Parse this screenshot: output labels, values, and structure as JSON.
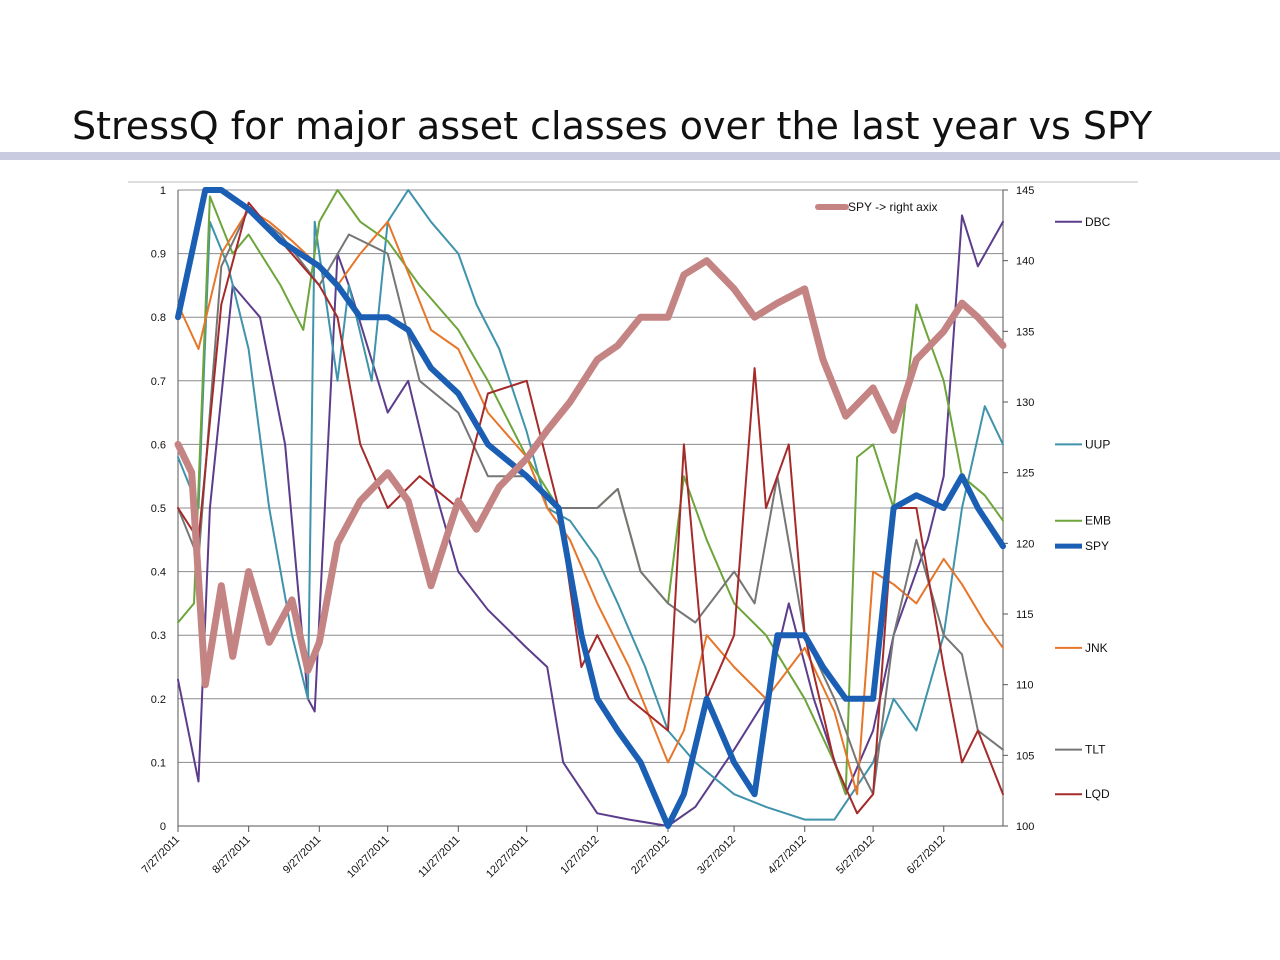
{
  "slide": {
    "title": "StressQ for major asset classes over the last year vs SPY"
  },
  "chart_data": {
    "type": "line",
    "dates": [
      "7/27/2011",
      "8/27/2011",
      "9/27/2011",
      "10/27/2011",
      "11/27/2011",
      "12/27/2011",
      "1/27/2012",
      "2/27/2012",
      "3/27/2012",
      "4/27/2012",
      "5/27/2012",
      "6/27/2012"
    ],
    "x_tick_labels": [
      "7/27/2011",
      "8/27/2011",
      "9/27/2011",
      "10/27/2011",
      "11/27/2011",
      "12/27/2011",
      "1/27/2012",
      "2/27/2012",
      "3/27/2012",
      "4/27/2012",
      "5/27/2012",
      "6/27/2012"
    ],
    "x_end": "7/23/2012",
    "ylim_left": [
      0,
      1
    ],
    "y_ticks_left": [
      "0",
      "0.1",
      "0.2",
      "0.3",
      "0.4",
      "0.5",
      "0.6",
      "0.7",
      "0.8",
      "0.9",
      "1"
    ],
    "ylim_right": [
      100,
      145
    ],
    "y_ticks_right": [
      "100",
      "105",
      "110",
      "115",
      "120",
      "125",
      "130",
      "135",
      "140",
      "145"
    ],
    "grid": "horizontal",
    "legend": "right",
    "inline_legend": {
      "label": "SPY  -> right axix",
      "color": "#c58484"
    },
    "series": [
      {
        "name": "DBC",
        "axis": "left",
        "color": "#5c3d8c",
        "width": 2,
        "x": [
          "7/27/2011",
          "8/5/2011",
          "8/10/2011",
          "8/20/2011",
          "9/1/2011",
          "9/12/2011",
          "9/22/2011",
          "9/25/2011",
          "10/5/2011",
          "10/10/2011",
          "10/27/2011",
          "11/5/2011",
          "11/15/2011",
          "11/27/2011",
          "12/10/2011",
          "12/27/2011",
          "1/5/2012",
          "1/12/2012",
          "1/27/2012",
          "2/10/2012",
          "2/27/2012",
          "3/10/2012",
          "3/27/2012",
          "4/10/2012",
          "4/20/2012",
          "5/1/2012",
          "5/15/2012",
          "5/27/2012",
          "6/5/2012",
          "6/20/2012",
          "6/27/2012",
          "7/5/2012",
          "7/12/2012",
          "7/23/2012"
        ],
        "values": [
          0.23,
          0.07,
          0.5,
          0.85,
          0.8,
          0.6,
          0.2,
          0.18,
          0.9,
          0.85,
          0.65,
          0.7,
          0.55,
          0.4,
          0.34,
          0.28,
          0.25,
          0.1,
          0.02,
          0.01,
          0,
          0.03,
          0.12,
          0.2,
          0.35,
          0.2,
          0.05,
          0.15,
          0.3,
          0.45,
          0.55,
          0.96,
          0.88,
          0.95
        ]
      },
      {
        "name": "UUP",
        "axis": "left",
        "color": "#3f93ab",
        "width": 2,
        "x": [
          "7/27/2011",
          "8/5/2011",
          "8/10/2011",
          "8/18/2011",
          "8/27/2011",
          "9/5/2011",
          "9/15/2011",
          "9/22/2011",
          "9/25/2011",
          "10/5/2011",
          "10/10/2011",
          "10/20/2011",
          "10/27/2011",
          "11/5/2011",
          "11/15/2011",
          "11/27/2011",
          "12/5/2011",
          "12/15/2011",
          "12/27/2011",
          "1/5/2012",
          "1/15/2012",
          "1/27/2012",
          "2/5/2012",
          "2/17/2012",
          "2/27/2012",
          "3/10/2012",
          "3/27/2012",
          "4/10/2012",
          "4/27/2012",
          "5/10/2012",
          "5/27/2012",
          "6/5/2012",
          "6/15/2012",
          "6/27/2012",
          "7/5/2012",
          "7/15/2012",
          "7/23/2012"
        ],
        "values": [
          0.58,
          0.5,
          0.95,
          0.88,
          0.75,
          0.5,
          0.3,
          0.2,
          0.95,
          0.7,
          0.85,
          0.7,
          0.95,
          1.0,
          0.95,
          0.9,
          0.82,
          0.75,
          0.62,
          0.5,
          0.48,
          0.42,
          0.35,
          0.25,
          0.15,
          0.1,
          0.05,
          0.03,
          0.01,
          0.01,
          0.1,
          0.2,
          0.15,
          0.3,
          0.5,
          0.66,
          0.6
        ]
      },
      {
        "name": "EMB",
        "axis": "left",
        "color": "#6da53b",
        "width": 2,
        "x": [
          "7/27/2011",
          "8/3/2011",
          "8/10/2011",
          "8/20/2011",
          "8/27/2011",
          "9/10/2011",
          "9/20/2011",
          "9/27/2011",
          "10/5/2011",
          "10/15/2011",
          "10/27/2011",
          "11/10/2011",
          "11/27/2011",
          "12/10/2011",
          "12/27/2011",
          "1/10/2012",
          "1/27/2012",
          "2/5/2012",
          "2/15/2012",
          "2/27/2012",
          "3/5/2012",
          "3/15/2012",
          "3/27/2012",
          "4/10/2012",
          "4/27/2012",
          "5/10/2012",
          "5/15/2012",
          "5/20/2012",
          "5/27/2012",
          "6/5/2012",
          "6/15/2012",
          "6/27/2012",
          "7/5/2012",
          "7/15/2012",
          "7/23/2012"
        ],
        "values": [
          0.32,
          0.35,
          0.99,
          0.9,
          0.93,
          0.85,
          0.78,
          0.95,
          1.0,
          0.95,
          0.92,
          0.85,
          0.78,
          0.7,
          0.58,
          0.5,
          0.5,
          0.53,
          0.4,
          0.35,
          0.55,
          0.45,
          0.35,
          0.3,
          0.2,
          0.1,
          0.05,
          0.58,
          0.6,
          0.5,
          0.82,
          0.7,
          0.55,
          0.52,
          0.48
        ]
      },
      {
        "name": "JNK",
        "axis": "left",
        "color": "#e6762a",
        "width": 2,
        "x": [
          "7/27/2011",
          "8/5/2011",
          "8/15/2011",
          "8/27/2011",
          "9/5/2011",
          "9/15/2011",
          "9/27/2011",
          "10/5/2011",
          "10/15/2011",
          "10/27/2011",
          "11/5/2011",
          "11/15/2011",
          "11/27/2011",
          "12/10/2011",
          "12/27/2011",
          "1/5/2012",
          "1/15/2012",
          "1/27/2012",
          "2/10/2012",
          "2/27/2012",
          "3/5/2012",
          "3/15/2012",
          "3/27/2012",
          "4/10/2012",
          "4/27/2012",
          "5/10/2012",
          "5/20/2012",
          "5/27/2012",
          "6/5/2012",
          "6/15/2012",
          "6/27/2012",
          "7/5/2012",
          "7/15/2012",
          "7/23/2012"
        ],
        "values": [
          0.82,
          0.75,
          0.9,
          0.97,
          0.95,
          0.92,
          0.88,
          0.85,
          0.9,
          0.95,
          0.87,
          0.78,
          0.75,
          0.65,
          0.58,
          0.5,
          0.45,
          0.35,
          0.25,
          0.1,
          0.15,
          0.3,
          0.25,
          0.2,
          0.28,
          0.18,
          0.05,
          0.4,
          0.38,
          0.35,
          0.42,
          0.38,
          0.32,
          0.28
        ]
      },
      {
        "name": "TLT",
        "axis": "left",
        "color": "#767676",
        "width": 2,
        "x": [
          "7/27/2011",
          "8/5/2011",
          "8/15/2011",
          "8/27/2011",
          "9/10/2011",
          "9/27/2011",
          "10/10/2011",
          "10/27/2011",
          "11/10/2011",
          "11/27/2011",
          "12/10/2011",
          "12/27/2011",
          "1/10/2012",
          "1/27/2012",
          "2/5/2012",
          "2/15/2012",
          "2/27/2012",
          "3/10/2012",
          "3/27/2012",
          "4/5/2012",
          "4/15/2012",
          "4/27/2012",
          "5/10/2012",
          "5/20/2012",
          "5/27/2012",
          "6/5/2012",
          "6/15/2012",
          "6/27/2012",
          "7/5/2012",
          "7/12/2012",
          "7/23/2012"
        ],
        "values": [
          0.5,
          0.42,
          0.88,
          0.97,
          0.93,
          0.85,
          0.93,
          0.9,
          0.7,
          0.65,
          0.55,
          0.55,
          0.5,
          0.5,
          0.53,
          0.4,
          0.35,
          0.32,
          0.4,
          0.35,
          0.55,
          0.3,
          0.2,
          0.1,
          0.05,
          0.3,
          0.45,
          0.3,
          0.27,
          0.15,
          0.12
        ]
      },
      {
        "name": "LQD",
        "axis": "left",
        "color": "#a52b2b",
        "width": 2,
        "x": [
          "7/27/2011",
          "8/5/2011",
          "8/15/2011",
          "8/27/2011",
          "9/10/2011",
          "9/27/2011",
          "10/5/2011",
          "10/15/2011",
          "10/27/2011",
          "11/10/2011",
          "11/27/2011",
          "12/10/2011",
          "12/27/2011",
          "1/10/2012",
          "1/20/2012",
          "1/27/2012",
          "2/10/2012",
          "2/27/2012",
          "3/5/2012",
          "3/15/2012",
          "3/27/2012",
          "4/5/2012",
          "4/10/2012",
          "4/20/2012",
          "4/27/2012",
          "5/10/2012",
          "5/20/2012",
          "5/27/2012",
          "6/5/2012",
          "6/15/2012",
          "6/27/2012",
          "7/5/2012",
          "7/12/2012",
          "7/23/2012"
        ],
        "values": [
          0.5,
          0.45,
          0.82,
          0.98,
          0.92,
          0.85,
          0.8,
          0.6,
          0.5,
          0.55,
          0.5,
          0.68,
          0.7,
          0.5,
          0.25,
          0.3,
          0.2,
          0.15,
          0.6,
          0.2,
          0.3,
          0.72,
          0.5,
          0.6,
          0.3,
          0.1,
          0.02,
          0.05,
          0.5,
          0.5,
          0.25,
          0.1,
          0.15,
          0.05
        ]
      },
      {
        "name": "SPY",
        "axis": "left",
        "color": "#1a5fb4",
        "width": 6,
        "x": [
          "7/27/2011",
          "8/2/2011",
          "8/8/2011",
          "8/15/2011",
          "8/27/2011",
          "9/10/2011",
          "9/27/2011",
          "10/5/2011",
          "10/15/2011",
          "10/27/2011",
          "11/5/2011",
          "11/15/2011",
          "11/27/2011",
          "12/10/2011",
          "12/27/2011",
          "1/10/2012",
          "1/20/2012",
          "1/27/2012",
          "2/5/2012",
          "2/15/2012",
          "2/27/2012",
          "3/5/2012",
          "3/15/2012",
          "3/27/2012",
          "4/5/2012",
          "4/15/2012",
          "4/27/2012",
          "5/5/2012",
          "5/15/2012",
          "5/27/2012",
          "6/5/2012",
          "6/15/2012",
          "6/27/2012",
          "7/5/2012",
          "7/12/2012",
          "7/23/2012"
        ],
        "values": [
          0.8,
          0.9,
          1.0,
          1.0,
          0.97,
          0.92,
          0.88,
          0.85,
          0.8,
          0.8,
          0.78,
          0.72,
          0.68,
          0.6,
          0.55,
          0.5,
          0.3,
          0.2,
          0.15,
          0.1,
          0.0,
          0.05,
          0.2,
          0.1,
          0.05,
          0.3,
          0.3,
          0.25,
          0.2,
          0.2,
          0.5,
          0.52,
          0.5,
          0.55,
          0.5,
          0.44
        ]
      },
      {
        "name": "SPY",
        "axis": "right",
        "color": "#c58484",
        "width": 7,
        "x": [
          "7/27/2011",
          "8/2/2011",
          "8/8/2011",
          "8/15/2011",
          "8/20/2011",
          "8/27/2011",
          "9/5/2011",
          "9/15/2011",
          "9/22/2011",
          "9/27/2011",
          "10/5/2011",
          "10/15/2011",
          "10/27/2011",
          "11/5/2011",
          "11/15/2011",
          "11/27/2011",
          "12/5/2011",
          "12/15/2011",
          "12/27/2011",
          "1/5/2012",
          "1/15/2012",
          "1/27/2012",
          "2/5/2012",
          "2/15/2012",
          "2/27/2012",
          "3/5/2012",
          "3/15/2012",
          "3/27/2012",
          "4/5/2012",
          "4/15/2012",
          "4/27/2012",
          "5/5/2012",
          "5/15/2012",
          "5/27/2012",
          "6/5/2012",
          "6/15/2012",
          "6/27/2012",
          "7/5/2012",
          "7/12/2012",
          "7/23/2012"
        ],
        "values": [
          127,
          125,
          110,
          117,
          112,
          118,
          113,
          116,
          111,
          113,
          120,
          123,
          125,
          123,
          117,
          123,
          121,
          124,
          126,
          128,
          130,
          133,
          134,
          136,
          136,
          139,
          140,
          138,
          136,
          137,
          138,
          133,
          129,
          131,
          128,
          133,
          135,
          137,
          136,
          134
        ]
      }
    ]
  }
}
